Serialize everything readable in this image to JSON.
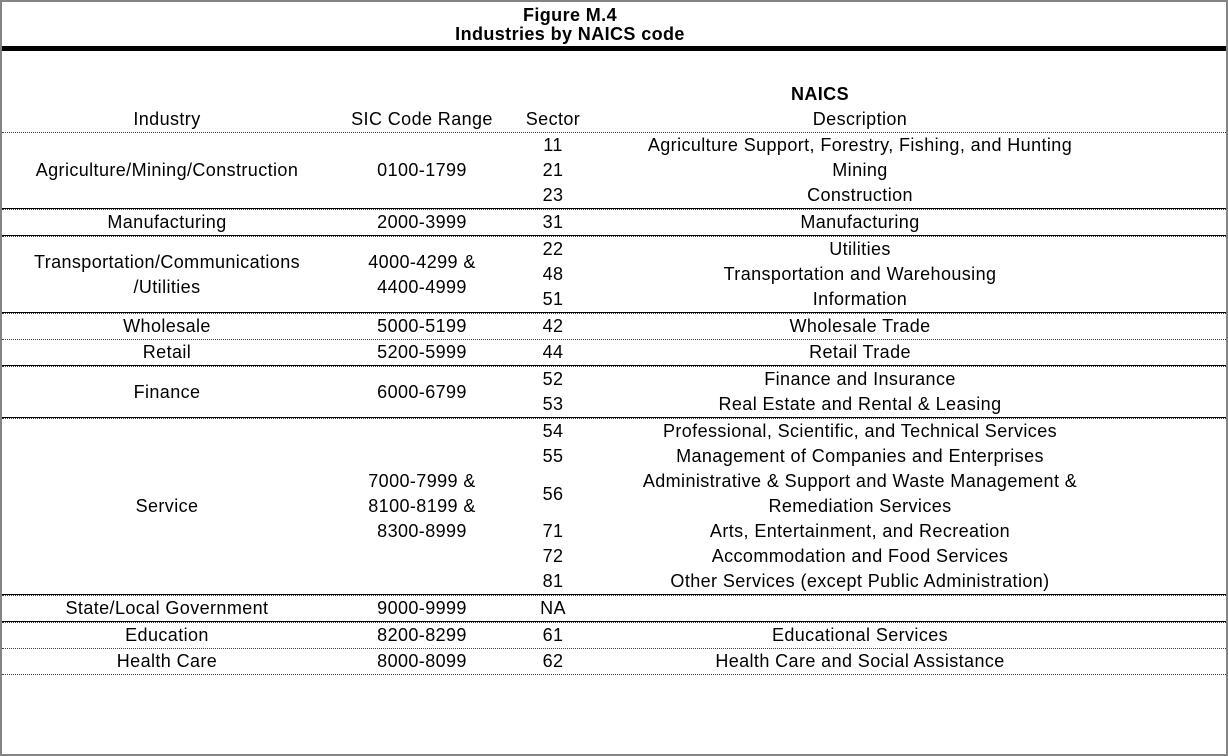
{
  "page": {
    "background": "#ffffff",
    "outer_border_color": "#848484",
    "title_rule_color": "#000000",
    "separator_dotted_color": "#3f3f3f",
    "text_color": "#000000"
  },
  "figure": {
    "title": "Figure M.4",
    "subtitle": "Industries by NAICS code"
  },
  "table": {
    "headers": {
      "industry": "Industry",
      "sic_code_range": "SIC Code Range",
      "sector": "Sector",
      "naics": "NAICS",
      "description": "Description"
    },
    "groups": [
      {
        "industry_lines": [
          "Agriculture/Mining/Construction"
        ],
        "sic_lines": [
          "0100-1799"
        ],
        "rows": [
          {
            "sector": "11",
            "description_lines": [
              "Agriculture Support, Forestry, Fishing, and Hunting"
            ]
          },
          {
            "sector": "21",
            "description_lines": [
              "Mining"
            ]
          },
          {
            "sector": "23",
            "description_lines": [
              "Construction"
            ]
          }
        ],
        "separator_after": "strong"
      },
      {
        "industry_lines": [
          "Manufacturing"
        ],
        "sic_lines": [
          "2000-3999"
        ],
        "rows": [
          {
            "sector": "31",
            "description_lines": [
              "Manufacturing"
            ]
          }
        ],
        "separator_after": "strong"
      },
      {
        "industry_lines": [
          "Transportation/Communications",
          "/Utilities"
        ],
        "sic_lines": [
          "4000-4299 &",
          "4400-4999"
        ],
        "rows": [
          {
            "sector": "22",
            "description_lines": [
              "Utilities"
            ]
          },
          {
            "sector": "48",
            "description_lines": [
              "Transportation and Warehousing"
            ]
          },
          {
            "sector": "51",
            "description_lines": [
              "Information"
            ]
          }
        ],
        "separator_after": "strong"
      },
      {
        "industry_lines": [
          "Wholesale"
        ],
        "sic_lines": [
          "5000-5199"
        ],
        "rows": [
          {
            "sector": "42",
            "description_lines": [
              "Wholesale Trade"
            ]
          }
        ],
        "separator_after": "light"
      },
      {
        "industry_lines": [
          "Retail"
        ],
        "sic_lines": [
          "5200-5999"
        ],
        "rows": [
          {
            "sector": "44",
            "description_lines": [
              "Retail Trade"
            ]
          }
        ],
        "separator_after": "strong"
      },
      {
        "industry_lines": [
          "Finance"
        ],
        "sic_lines": [
          "6000-6799"
        ],
        "rows": [
          {
            "sector": "52",
            "description_lines": [
              "Finance and Insurance"
            ]
          },
          {
            "sector": "53",
            "description_lines": [
              "Real Estate and Rental & Leasing"
            ]
          }
        ],
        "separator_after": "strong"
      },
      {
        "industry_lines": [
          "Service"
        ],
        "sic_lines": [
          "7000-7999 &",
          "8100-8199 &",
          "8300-8999"
        ],
        "rows": [
          {
            "sector": "54",
            "description_lines": [
              "Professional, Scientific, and Technical Services"
            ]
          },
          {
            "sector": "55",
            "description_lines": [
              "Management of Companies and Enterprises"
            ]
          },
          {
            "sector": "56",
            "description_lines": [
              "Administrative & Support and Waste Management &",
              "Remediation Services"
            ]
          },
          {
            "sector": "71",
            "description_lines": [
              "Arts, Entertainment, and Recreation"
            ]
          },
          {
            "sector": "72",
            "description_lines": [
              "Accommodation and Food Services"
            ]
          },
          {
            "sector": "81",
            "description_lines": [
              "Other Services (except Public Administration)"
            ]
          }
        ],
        "separator_after": "strong"
      },
      {
        "industry_lines": [
          "State/Local Government"
        ],
        "sic_lines": [
          "9000-9999"
        ],
        "rows": [
          {
            "sector": "NA",
            "description_lines": []
          }
        ],
        "separator_after": "strong"
      },
      {
        "industry_lines": [
          "Education"
        ],
        "sic_lines": [
          "8200-8299"
        ],
        "rows": [
          {
            "sector": "61",
            "description_lines": [
              "Educational Services"
            ]
          }
        ],
        "separator_after": "light"
      },
      {
        "industry_lines": [
          "Health Care"
        ],
        "sic_lines": [
          "8000-8099"
        ],
        "rows": [
          {
            "sector": "62",
            "description_lines": [
              "Health Care and Social Assistance"
            ]
          }
        ],
        "separator_after": "light"
      }
    ]
  }
}
